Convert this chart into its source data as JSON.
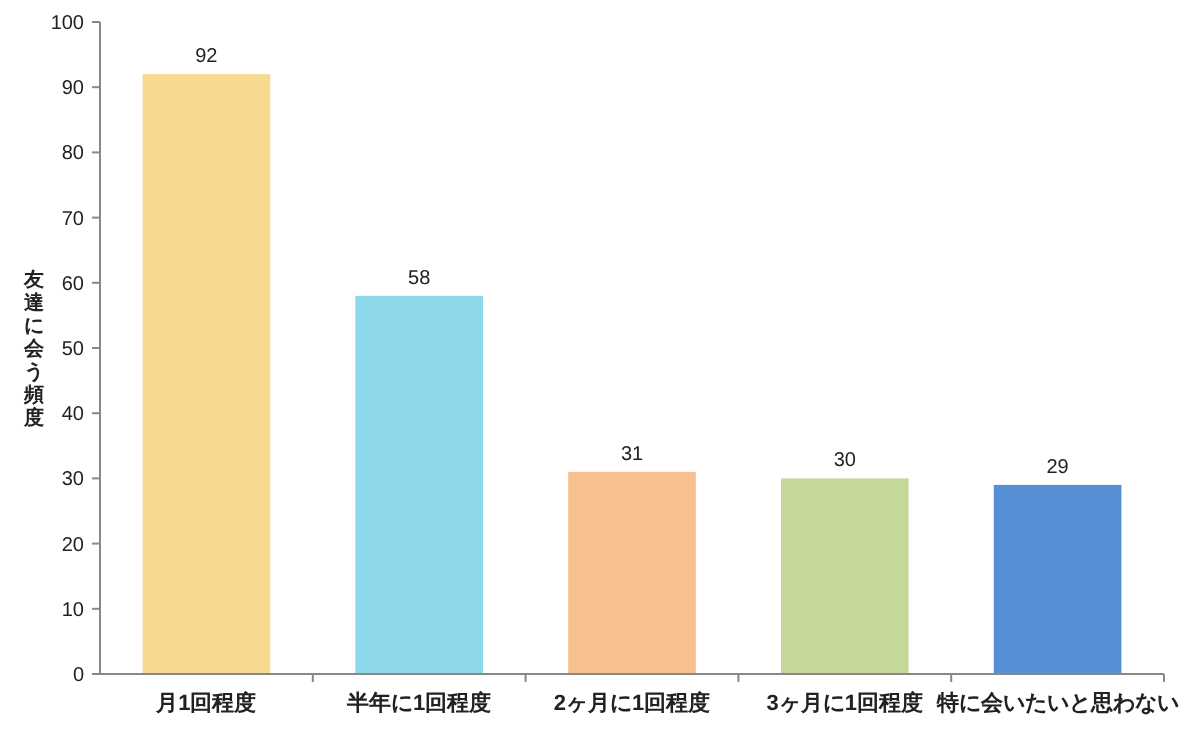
{
  "chart_data": {
    "type": "bar",
    "ylabel": "友達に会う頻度",
    "categories": [
      "月1回程度",
      "半年に1回程度",
      "2ヶ月に1回程度",
      "3ヶ月に1回程度",
      "特に会いたいと思わない"
    ],
    "values": [
      92,
      58,
      31,
      30,
      29
    ],
    "colors": [
      "#f7d98f",
      "#8dd8ea",
      "#f9c08f",
      "#c5d89c",
      "#5590d6"
    ],
    "ylim": [
      0,
      100
    ],
    "yticks": [
      0,
      10,
      20,
      30,
      40,
      50,
      60,
      70,
      80,
      90,
      100
    ],
    "data_labels": true
  }
}
